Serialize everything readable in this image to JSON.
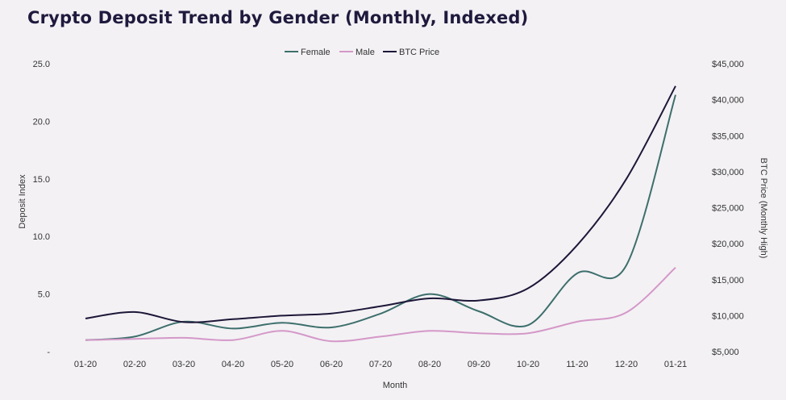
{
  "title": "Crypto Deposit Trend by Gender (Monthly, Indexed)",
  "chart_data": {
    "type": "line",
    "title": "Crypto Deposit Trend by Gender (Monthly, Indexed)",
    "xlabel": "Month",
    "ylabel": "Deposit Index",
    "y2label": "BTC Price (Monthly High)",
    "categories": [
      "01-20",
      "02-20",
      "03-20",
      "04-20",
      "05-20",
      "06-20",
      "07-20",
      "08-20",
      "09-20",
      "10-20",
      "11-20",
      "12-20",
      "01-21"
    ],
    "ylim": [
      0,
      25
    ],
    "yticks": [
      "25.0",
      "20.0",
      "15.0",
      "10.0",
      "5.0",
      "-"
    ],
    "y2lim": [
      5000,
      45000
    ],
    "y2ticks": [
      "$45,000",
      "$40,000",
      "$35,000",
      "$30,000",
      "$25,000",
      "$20,000",
      "$15,000",
      "$10,000",
      "$5,000"
    ],
    "legend_position": "top-center",
    "grid": false,
    "series": [
      {
        "name": "Female",
        "axis": "left",
        "color": "#3d6f6c",
        "values": [
          1.0,
          1.3,
          2.6,
          2.0,
          2.5,
          2.1,
          3.3,
          5.0,
          3.5,
          2.3,
          6.8,
          7.5,
          22.3
        ]
      },
      {
        "name": "Male",
        "axis": "left",
        "color": "#d498c8",
        "values": [
          1.0,
          1.1,
          1.2,
          1.0,
          1.8,
          0.9,
          1.3,
          1.8,
          1.6,
          1.6,
          2.6,
          3.4,
          7.3
        ]
      },
      {
        "name": "BTC Price",
        "axis": "right",
        "color": "#1d1738",
        "values": [
          9600,
          10500,
          9100,
          9500,
          10000,
          10300,
          11300,
          12400,
          12100,
          13800,
          19800,
          29000,
          41900
        ]
      }
    ]
  }
}
